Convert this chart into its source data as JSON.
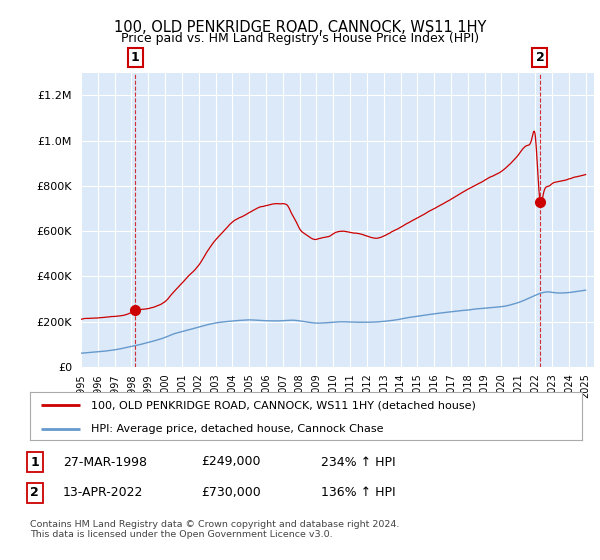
{
  "title": "100, OLD PENKRIDGE ROAD, CANNOCK, WS11 1HY",
  "subtitle": "Price paid vs. HM Land Registry's House Price Index (HPI)",
  "legend_label_red": "100, OLD PENKRIDGE ROAD, CANNOCK, WS11 1HY (detached house)",
  "legend_label_blue": "HPI: Average price, detached house, Cannock Chase",
  "footnote": "Contains HM Land Registry data © Crown copyright and database right 2024.\nThis data is licensed under the Open Government Licence v3.0.",
  "point1_date": "27-MAR-1998",
  "point1_price": "£249,000",
  "point1_hpi": "234% ↑ HPI",
  "point2_date": "13-APR-2022",
  "point2_price": "£730,000",
  "point2_hpi": "136% ↑ HPI",
  "yticks": [
    0,
    200000,
    400000,
    600000,
    800000,
    1000000,
    1200000
  ],
  "background_color": "#dce9f8",
  "red_color": "#cc0000",
  "blue_color": "#6699cc",
  "grid_color": "#ffffff",
  "red_curve_points": [
    [
      1995.0,
      210000
    ],
    [
      1995.5,
      215000
    ],
    [
      1996.0,
      218000
    ],
    [
      1996.5,
      222000
    ],
    [
      1997.0,
      225000
    ],
    [
      1997.5,
      230000
    ],
    [
      1998.24,
      249000
    ],
    [
      1998.5,
      255000
    ],
    [
      1999.0,
      260000
    ],
    [
      1999.5,
      270000
    ],
    [
      2000.0,
      290000
    ],
    [
      2000.5,
      330000
    ],
    [
      2001.0,
      370000
    ],
    [
      2001.5,
      410000
    ],
    [
      2002.0,
      450000
    ],
    [
      2002.5,
      510000
    ],
    [
      2003.0,
      560000
    ],
    [
      2003.5,
      600000
    ],
    [
      2004.0,
      640000
    ],
    [
      2004.5,
      660000
    ],
    [
      2005.0,
      680000
    ],
    [
      2005.5,
      700000
    ],
    [
      2006.0,
      710000
    ],
    [
      2006.5,
      720000
    ],
    [
      2007.0,
      720000
    ],
    [
      2007.3,
      710000
    ],
    [
      2007.5,
      680000
    ],
    [
      2007.8,
      640000
    ],
    [
      2008.0,
      610000
    ],
    [
      2008.3,
      590000
    ],
    [
      2008.6,
      575000
    ],
    [
      2008.9,
      565000
    ],
    [
      2009.2,
      570000
    ],
    [
      2009.5,
      575000
    ],
    [
      2009.8,
      580000
    ],
    [
      2010.0,
      590000
    ],
    [
      2010.5,
      600000
    ],
    [
      2011.0,
      595000
    ],
    [
      2011.5,
      590000
    ],
    [
      2012.0,
      580000
    ],
    [
      2012.5,
      570000
    ],
    [
      2013.0,
      580000
    ],
    [
      2013.5,
      600000
    ],
    [
      2014.0,
      620000
    ],
    [
      2014.5,
      640000
    ],
    [
      2015.0,
      660000
    ],
    [
      2015.5,
      680000
    ],
    [
      2016.0,
      700000
    ],
    [
      2016.5,
      720000
    ],
    [
      2017.0,
      740000
    ],
    [
      2017.5,
      760000
    ],
    [
      2018.0,
      780000
    ],
    [
      2018.5,
      800000
    ],
    [
      2019.0,
      820000
    ],
    [
      2019.5,
      840000
    ],
    [
      2020.0,
      860000
    ],
    [
      2020.5,
      890000
    ],
    [
      2021.0,
      930000
    ],
    [
      2021.5,
      970000
    ],
    [
      2021.8,
      1000000
    ],
    [
      2022.0,
      1020000
    ],
    [
      2022.28,
      730000
    ],
    [
      2022.5,
      760000
    ],
    [
      2022.8,
      790000
    ],
    [
      2023.0,
      800000
    ],
    [
      2023.5,
      810000
    ],
    [
      2024.0,
      820000
    ],
    [
      2024.5,
      830000
    ],
    [
      2025.0,
      840000
    ]
  ],
  "hpi_curve_points": [
    [
      1995.0,
      60000
    ],
    [
      1995.5,
      63000
    ],
    [
      1996.0,
      66000
    ],
    [
      1996.5,
      70000
    ],
    [
      1997.0,
      75000
    ],
    [
      1997.5,
      82000
    ],
    [
      1998.0,
      90000
    ],
    [
      1998.5,
      98000
    ],
    [
      1999.0,
      108000
    ],
    [
      1999.5,
      118000
    ],
    [
      2000.0,
      130000
    ],
    [
      2000.5,
      145000
    ],
    [
      2001.0,
      155000
    ],
    [
      2001.5,
      165000
    ],
    [
      2002.0,
      175000
    ],
    [
      2002.5,
      185000
    ],
    [
      2003.0,
      193000
    ],
    [
      2003.5,
      198000
    ],
    [
      2004.0,
      202000
    ],
    [
      2004.5,
      205000
    ],
    [
      2005.0,
      207000
    ],
    [
      2005.5,
      205000
    ],
    [
      2006.0,
      203000
    ],
    [
      2006.5,
      202000
    ],
    [
      2007.0,
      203000
    ],
    [
      2007.5,
      205000
    ],
    [
      2008.0,
      202000
    ],
    [
      2008.5,
      196000
    ],
    [
      2009.0,
      192000
    ],
    [
      2009.5,
      193000
    ],
    [
      2010.0,
      196000
    ],
    [
      2010.5,
      198000
    ],
    [
      2011.0,
      197000
    ],
    [
      2011.5,
      196000
    ],
    [
      2012.0,
      196000
    ],
    [
      2012.5,
      197000
    ],
    [
      2013.0,
      200000
    ],
    [
      2013.5,
      204000
    ],
    [
      2014.0,
      210000
    ],
    [
      2014.5,
      217000
    ],
    [
      2015.0,
      222000
    ],
    [
      2015.5,
      228000
    ],
    [
      2016.0,
      233000
    ],
    [
      2016.5,
      238000
    ],
    [
      2017.0,
      242000
    ],
    [
      2017.5,
      247000
    ],
    [
      2018.0,
      250000
    ],
    [
      2018.5,
      255000
    ],
    [
      2019.0,
      258000
    ],
    [
      2019.5,
      262000
    ],
    [
      2020.0,
      265000
    ],
    [
      2020.5,
      272000
    ],
    [
      2021.0,
      283000
    ],
    [
      2021.5,
      298000
    ],
    [
      2022.0,
      315000
    ],
    [
      2022.5,
      328000
    ],
    [
      2022.8,
      330000
    ],
    [
      2023.0,
      328000
    ],
    [
      2023.5,
      325000
    ],
    [
      2024.0,
      327000
    ],
    [
      2024.5,
      332000
    ],
    [
      2025.0,
      338000
    ]
  ]
}
